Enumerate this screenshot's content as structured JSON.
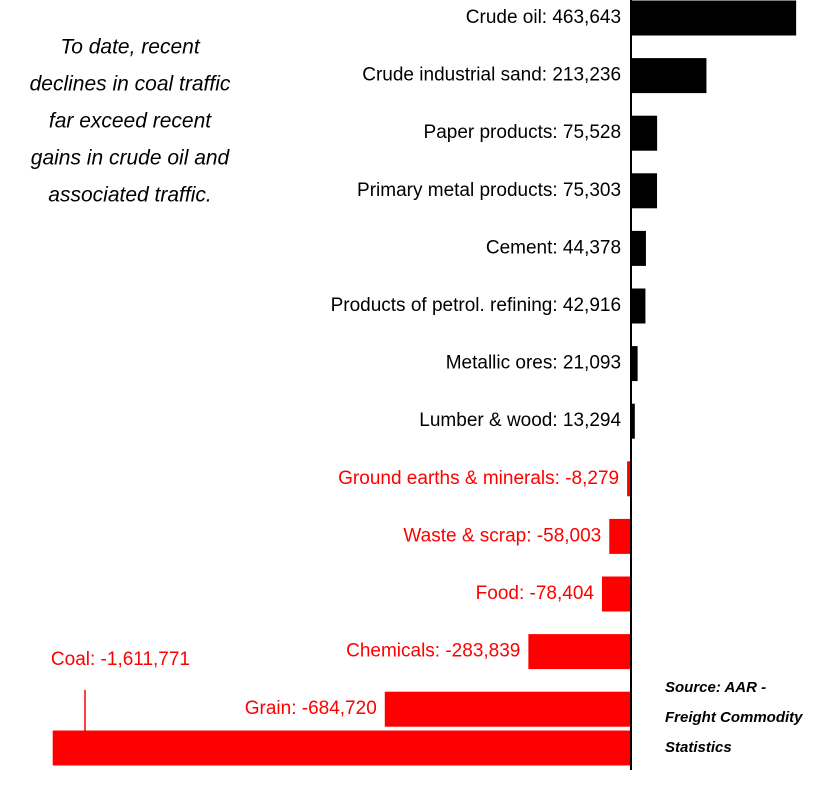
{
  "chart_data": {
    "type": "hbar",
    "annotation": [
      "To date, recent",
      "declines in coal traffic",
      "far exceed recent",
      "gains in crude oil and",
      "associated traffic."
    ],
    "source": [
      "Source:  AAR -",
      "Freight Commodity",
      "Statistics"
    ],
    "values": [
      463643,
      213236,
      75528,
      75303,
      44378,
      42916,
      21093,
      13294,
      -8279,
      -58003,
      -78404,
      -283839,
      -684720,
      -1611771
    ],
    "value_labels": [
      "Crude oil: 463,643",
      "Crude industrial sand: 213,236",
      "Paper products: 75,528",
      "Primary metal products: 75,303",
      "Cement: 44,378",
      "Products of petrol. refining: 42,916",
      "Metallic ores: 21,093",
      "Lumber & wood: 13,294",
      "Ground earths & minerals: -8,279",
      "Waste & scrap: -58,003",
      "Food: -78,404",
      "Chemicals: -283,839",
      "Grain: -684,720",
      "Coal: -1,611,771"
    ],
    "positive_color": "#000000",
    "negative_color": "#ff0000",
    "xlim": [
      -1650000,
      480000
    ]
  }
}
